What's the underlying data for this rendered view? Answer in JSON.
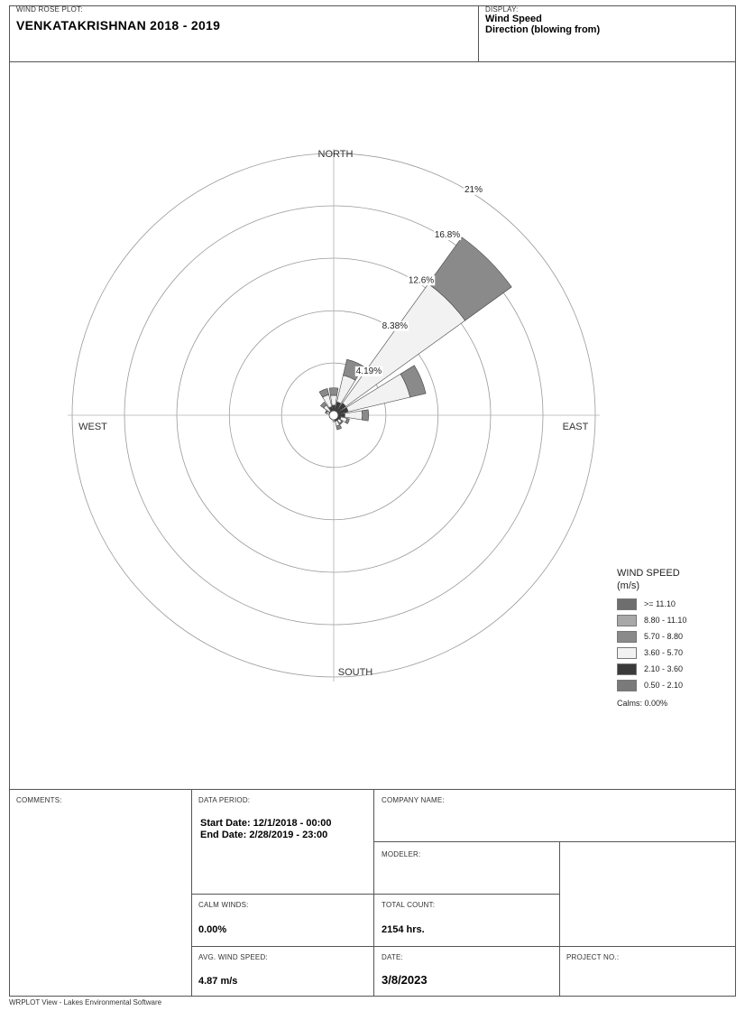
{
  "header": {
    "plot_label": "WIND ROSE PLOT:",
    "title": "VENKATAKRISHNAN 2018 - 2019",
    "display_label": "DISPLAY:",
    "display_line1": "Wind Speed",
    "display_line2": "Direction (blowing from)"
  },
  "chart_data": {
    "type": "wind rose",
    "directions": [
      "N",
      "NNE",
      "NE",
      "ENE",
      "E",
      "ESE",
      "SE",
      "SSE",
      "S",
      "SSW",
      "SW",
      "WSW",
      "W",
      "WNW",
      "NW",
      "NNW"
    ],
    "bins": [
      {
        "name": "0.50 - 2.10",
        "color": "#7a7a7a"
      },
      {
        "name": "2.10 - 3.60",
        "color": "#3a3a3a"
      },
      {
        "name": "3.60 - 5.70",
        "color": "#f2f2f2"
      },
      {
        "name": "5.70 - 8.80",
        "color": "#8a8a8a"
      },
      {
        "name": "8.80 - 11.10",
        "color": "#a8a8a8"
      },
      {
        "name": ">= 11.10",
        "color": "#6e6e6e"
      }
    ],
    "frequencies_percent": [
      [
        0.2,
        0.6,
        0.8,
        0.6,
        0.0,
        0.0
      ],
      [
        0.3,
        0.8,
        2.2,
        1.3,
        0.0,
        0.0
      ],
      [
        0.3,
        0.9,
        11.8,
        4.6,
        0.0,
        0.0
      ],
      [
        0.3,
        0.9,
        5.1,
        1.3,
        0.0,
        0.0
      ],
      [
        0.3,
        0.6,
        1.4,
        0.5,
        0.0,
        0.0
      ],
      [
        0.2,
        0.4,
        0.5,
        0.2,
        0.0,
        0.0
      ],
      [
        0.2,
        0.3,
        0.3,
        0.1,
        0.0,
        0.0
      ],
      [
        0.2,
        0.3,
        0.4,
        0.3,
        0.0,
        0.0
      ],
      [
        0.1,
        0.2,
        0.2,
        0.0,
        0.0,
        0.0
      ],
      [
        0.1,
        0.1,
        0.1,
        0.0,
        0.0,
        0.0
      ],
      [
        0.1,
        0.1,
        0.0,
        0.0,
        0.0,
        0.0
      ],
      [
        0.1,
        0.1,
        0.0,
        0.0,
        0.0,
        0.0
      ],
      [
        0.1,
        0.1,
        0.1,
        0.0,
        0.0,
        0.0
      ],
      [
        0.1,
        0.2,
        0.3,
        0.1,
        0.0,
        0.0
      ],
      [
        0.1,
        0.3,
        0.6,
        0.3,
        0.0,
        0.0
      ],
      [
        0.2,
        0.5,
        1.0,
        0.5,
        0.0,
        0.0
      ]
    ],
    "ring_labels": [
      "4.19%",
      "8.38%",
      "12.6%",
      "16.8%",
      "21%"
    ],
    "ring_values": [
      4.19,
      8.38,
      12.6,
      16.8,
      21
    ],
    "max_percent": 21,
    "compass": {
      "north": "NORTH",
      "south": "SOUTH",
      "east": "EAST",
      "west": "WEST"
    }
  },
  "legend": {
    "title_line1": "WIND SPEED",
    "title_line2": "(m/s)",
    "items": [
      {
        "label": ">= 11.10",
        "color": "#6e6e6e"
      },
      {
        "label": "8.80 - 11.10",
        "color": "#a8a8a8"
      },
      {
        "label": "5.70 - 8.80",
        "color": "#8a8a8a"
      },
      {
        "label": "3.60 - 5.70",
        "color": "#f2f2f2"
      },
      {
        "label": "2.10 - 3.60",
        "color": "#3a3a3a"
      },
      {
        "label": "0.50 - 2.10",
        "color": "#7a7a7a"
      }
    ],
    "calms": "Calms: 0.00%"
  },
  "info": {
    "comments_label": "COMMENTS:",
    "data_period_label": "DATA PERIOD:",
    "start_date": "Start Date: 12/1/2018 - 00:00",
    "end_date": "End Date: 2/28/2019 - 23:00",
    "company_label": "COMPANY NAME:",
    "modeler_label": "MODELER:",
    "calm_winds_label": "CALM WINDS:",
    "calm_winds_value": "0.00%",
    "total_count_label": "TOTAL COUNT:",
    "total_count_value": "2154 hrs.",
    "avg_speed_label": "AVG. WIND SPEED:",
    "avg_speed_value": "4.87 m/s",
    "date_label": "DATE:",
    "date_value": "3/8/2023",
    "project_label": "PROJECT NO.:"
  },
  "footer": "WRPLOT View - Lakes Environmental Software"
}
